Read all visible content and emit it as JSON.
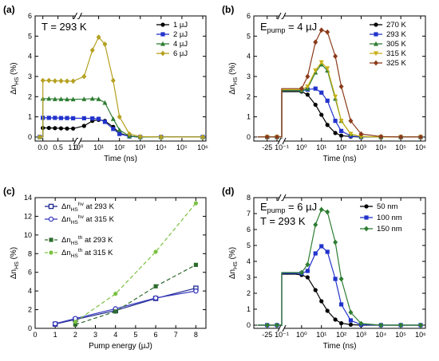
{
  "chart_data": [
    {
      "panel": "(a)",
      "type": "line",
      "annotation": "T = 293 K",
      "xlabel": "Time (ns)",
      "ylabel": "Δn_HS (%)",
      "ylim": [
        -0.2,
        6
      ],
      "x_ticks": [
        "0.0",
        "0.5",
        "1.0",
        "10⁰",
        "10¹",
        "10²",
        "10³",
        "10⁴",
        "10⁵",
        "10⁶"
      ],
      "y_ticks": [
        "0",
        "1",
        "2",
        "3",
        "4",
        "5",
        "6"
      ],
      "series": [
        {
          "name": "1 µJ",
          "color": "#000000",
          "marker": "circle",
          "x": [
            -0.1,
            0.0,
            0.2,
            0.4,
            0.6,
            0.8,
            1.0,
            2,
            5,
            10,
            20,
            50,
            100,
            300,
            1000,
            10000,
            1000000
          ],
          "y": [
            0,
            0.45,
            0.45,
            0.44,
            0.43,
            0.42,
            0.42,
            0.55,
            0.8,
            0.85,
            0.8,
            0.5,
            0.2,
            0.03,
            0,
            0,
            0
          ]
        },
        {
          "name": "2 µJ",
          "color": "#2233cc",
          "marker": "square",
          "x": [
            -0.1,
            0.0,
            0.2,
            0.4,
            0.6,
            0.8,
            1.0,
            2,
            5,
            10,
            20,
            50,
            100,
            300,
            1000,
            10000,
            1000000
          ],
          "y": [
            0,
            0.95,
            0.95,
            0.95,
            0.94,
            0.94,
            0.93,
            0.93,
            0.92,
            0.9,
            0.75,
            0.4,
            0.15,
            0.03,
            0,
            0,
            0
          ]
        },
        {
          "name": "4 µJ",
          "color": "#2e7d32",
          "marker": "triangle",
          "x": [
            -0.1,
            0.0,
            0.2,
            0.4,
            0.6,
            0.8,
            1.0,
            2,
            5,
            10,
            20,
            50,
            100,
            300,
            1000,
            10000,
            1000000
          ],
          "y": [
            0,
            1.9,
            1.9,
            1.88,
            1.88,
            1.87,
            1.87,
            1.88,
            1.9,
            1.88,
            1.7,
            0.9,
            0.35,
            0.05,
            0,
            0,
            0
          ]
        },
        {
          "name": "6 µJ",
          "color": "#b5a020",
          "marker": "diamond",
          "x": [
            -0.1,
            0.0,
            0.2,
            0.4,
            0.6,
            0.8,
            1.0,
            2,
            5,
            10,
            20,
            50,
            100,
            300,
            1000,
            10000,
            1000000
          ],
          "y": [
            0,
            2.8,
            2.8,
            2.78,
            2.78,
            2.77,
            2.77,
            3.0,
            4.3,
            4.95,
            4.6,
            2.8,
            1.0,
            0.15,
            0.02,
            0,
            0
          ]
        }
      ]
    },
    {
      "panel": "(b)",
      "type": "line",
      "annotation": "E_pump = 4 µJ",
      "xlabel": "Time (ns)",
      "ylabel": "Δn_HS (%)",
      "ylim": [
        -0.2,
        6
      ],
      "x_ticks": [
        "-25",
        "0",
        "10⁻¹",
        "10⁰",
        "10¹",
        "10²",
        "10³",
        "10⁴",
        "10⁵",
        "10⁶"
      ],
      "y_ticks": [
        "0",
        "1",
        "2",
        "3",
        "4",
        "5",
        "6"
      ],
      "series": [
        {
          "name": "270 K",
          "color": "#000000",
          "marker": "circle",
          "x": [
            -50,
            -25,
            0,
            0.1,
            0.5,
            1,
            2,
            5,
            10,
            20,
            50,
            100,
            300,
            1000,
            10000,
            100000,
            1000000
          ],
          "y": [
            0,
            0,
            0,
            2.25,
            2.25,
            2.25,
            2.1,
            1.6,
            1.1,
            0.6,
            0.2,
            0.07,
            0.02,
            0,
            0,
            0,
            0
          ]
        },
        {
          "name": "293 K",
          "color": "#2233cc",
          "marker": "square",
          "x": [
            -50,
            -25,
            0,
            0.1,
            0.5,
            1,
            2,
            5,
            10,
            20,
            50,
            100,
            300,
            1000,
            10000,
            100000,
            1000000
          ],
          "y": [
            0,
            0,
            0,
            2.3,
            2.3,
            2.3,
            2.35,
            2.4,
            2.2,
            1.8,
            0.8,
            0.3,
            0.05,
            0,
            0,
            0,
            0
          ]
        },
        {
          "name": "305 K",
          "color": "#2e7d32",
          "marker": "triangle",
          "x": [
            -50,
            -25,
            0,
            0.1,
            0.5,
            1,
            2,
            5,
            10,
            20,
            50,
            100,
            300,
            1000,
            10000,
            100000,
            1000000
          ],
          "y": [
            0,
            0,
            0,
            2.3,
            2.3,
            2.3,
            2.4,
            3.2,
            3.6,
            3.3,
            1.9,
            0.8,
            0.15,
            0.02,
            0,
            0,
            0
          ]
        },
        {
          "name": "315 K",
          "color": "#c8b016",
          "marker": "triangle-down",
          "x": [
            -50,
            -25,
            0,
            0.1,
            0.5,
            1,
            2,
            5,
            10,
            20,
            50,
            100,
            300,
            1000,
            10000,
            100000,
            1000000
          ],
          "y": [
            0,
            0,
            0,
            2.35,
            2.35,
            2.35,
            2.5,
            3.3,
            3.7,
            3.4,
            2.0,
            0.8,
            0.15,
            0.02,
            0,
            0,
            0
          ]
        },
        {
          "name": "325 K",
          "color": "#8b3a1a",
          "marker": "diamond",
          "x": [
            -50,
            -25,
            0,
            0.1,
            0.5,
            1,
            2,
            5,
            10,
            20,
            50,
            100,
            300,
            1000,
            10000,
            100000,
            1000000
          ],
          "y": [
            0,
            0,
            0,
            2.4,
            2.4,
            2.4,
            3.0,
            4.7,
            5.3,
            5.2,
            4.0,
            2.5,
            0.8,
            0.15,
            0.02,
            0,
            0
          ]
        }
      ]
    },
    {
      "panel": "(c)",
      "type": "line",
      "xlabel": "Pump energy (µJ)",
      "ylabel": "Δn_HS (%)",
      "xlim": [
        0,
        8.5
      ],
      "ylim": [
        0,
        14
      ],
      "x_ticks": [
        "0",
        "1",
        "2",
        "3",
        "4",
        "5",
        "6",
        "7",
        "8"
      ],
      "y_ticks": [
        "0",
        "2",
        "4",
        "6",
        "8",
        "10",
        "12",
        "14"
      ],
      "series": [
        {
          "name": "Δn_HS^hv at 293 K",
          "color": "#1f2a8c",
          "marker": "open-square",
          "style": "solid",
          "x": [
            1,
            2,
            4,
            6,
            8
          ],
          "y": [
            0.45,
            0.95,
            1.9,
            3.2,
            4.3
          ]
        },
        {
          "name": "Δn_HS^hv at 315 K",
          "color": "#3b3bc0",
          "marker": "open-circle",
          "style": "solid",
          "x": [
            1,
            2,
            4,
            6,
            8
          ],
          "y": [
            0.5,
            1.05,
            2.1,
            3.25,
            4.0
          ]
        },
        {
          "name": "Δn_HS^th at 293 K",
          "color": "#2e6b2e",
          "marker": "square",
          "style": "dashed",
          "x": [
            2,
            4,
            6,
            8
          ],
          "y": [
            0.4,
            1.8,
            4.5,
            6.8
          ]
        },
        {
          "name": "Δn_HS^th at 315 K",
          "color": "#7cc242",
          "marker": "circle",
          "style": "dashed",
          "x": [
            2,
            4,
            6,
            8
          ],
          "y": [
            0.7,
            3.7,
            8.2,
            13.4
          ]
        }
      ]
    },
    {
      "panel": "(d)",
      "type": "line",
      "annotation_1": "E_pump = 6 µJ",
      "annotation_2": "T = 293 K",
      "xlabel": "Time (ns)",
      "ylabel": "Δn_HS (%)",
      "ylim": [
        -0.2,
        8
      ],
      "x_ticks": [
        "-25",
        "0",
        "10⁻¹",
        "10⁰",
        "10¹",
        "10²",
        "10³",
        "10⁴",
        "10⁵",
        "10⁶"
      ],
      "y_ticks": [
        "0",
        "1",
        "2",
        "3",
        "4",
        "5",
        "6",
        "7",
        "8"
      ],
      "series": [
        {
          "name": "50 nm",
          "color": "#000000",
          "marker": "circle",
          "x": [
            -50,
            -25,
            0,
            0.1,
            0.5,
            1,
            2,
            5,
            10,
            20,
            50,
            100,
            300,
            1000,
            10000,
            100000,
            1000000
          ],
          "y": [
            0,
            0,
            0,
            3.2,
            3.2,
            3.15,
            3.0,
            2.2,
            1.5,
            0.9,
            0.35,
            0.12,
            0.03,
            0,
            0,
            0,
            0
          ]
        },
        {
          "name": "100 nm",
          "color": "#2233cc",
          "marker": "square",
          "x": [
            -50,
            -25,
            0,
            0.1,
            0.5,
            1,
            2,
            5,
            10,
            20,
            50,
            100,
            300,
            1000,
            10000,
            100000,
            1000000
          ],
          "y": [
            0,
            0,
            0,
            3.25,
            3.25,
            3.25,
            3.4,
            4.5,
            4.95,
            4.6,
            2.9,
            1.3,
            0.3,
            0.03,
            0,
            0,
            0
          ]
        },
        {
          "name": "150 nm",
          "color": "#2e7d32",
          "marker": "diamond",
          "x": [
            -50,
            -25,
            0,
            0.1,
            0.5,
            1,
            2,
            5,
            10,
            20,
            50,
            100,
            300,
            1000,
            10000,
            100000,
            1000000
          ],
          "y": [
            0,
            0,
            0,
            3.3,
            3.3,
            3.3,
            3.8,
            6.3,
            7.25,
            7.1,
            5.2,
            2.9,
            0.8,
            0.1,
            0,
            0,
            0
          ]
        }
      ]
    }
  ]
}
